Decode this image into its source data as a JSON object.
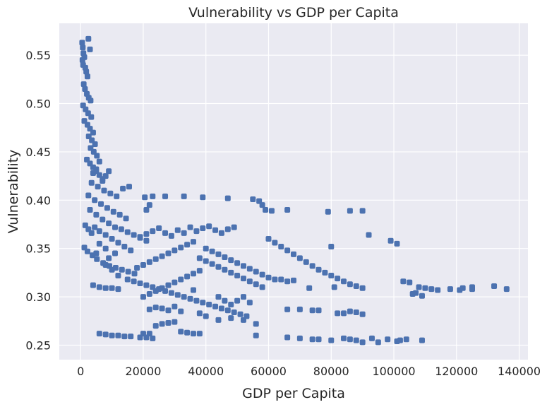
{
  "chart_data": {
    "type": "scatter",
    "title": "Vulnerability vs GDP per Capita",
    "xlabel": "GDP per Capita",
    "ylabel": "Vulnerability",
    "xlim": [
      -6800,
      142800
    ],
    "ylim": [
      0.235,
      0.583
    ],
    "xticks": [
      0,
      20000,
      40000,
      60000,
      80000,
      100000,
      120000,
      140000
    ],
    "yticks": [
      0.25,
      0.3,
      0.35,
      0.4,
      0.45,
      0.5,
      0.55
    ],
    "grid": true,
    "legend": "none",
    "colors": {
      "background": "#eaeaf2",
      "grid": "#ffffff",
      "marker": "#4c72b0"
    },
    "series": [
      {
        "points": [
          [
            500,
            0.563
          ],
          [
            700,
            0.558
          ],
          [
            900,
            0.552
          ],
          [
            1200,
            0.548
          ],
          [
            600,
            0.545
          ],
          [
            800,
            0.54
          ],
          [
            1500,
            0.537
          ],
          [
            2500,
            0.567
          ],
          [
            3000,
            0.556
          ],
          [
            1800,
            0.533
          ],
          [
            2200,
            0.528
          ],
          [
            1000,
            0.52
          ],
          [
            1400,
            0.515
          ],
          [
            2000,
            0.51
          ],
          [
            2600,
            0.506
          ],
          [
            3200,
            0.503
          ],
          [
            800,
            0.498
          ],
          [
            1600,
            0.494
          ],
          [
            2400,
            0.49
          ],
          [
            3400,
            0.486
          ],
          [
            1200,
            0.482
          ],
          [
            2200,
            0.478
          ],
          [
            3000,
            0.474
          ],
          [
            4000,
            0.47
          ],
          [
            2600,
            0.466
          ],
          [
            3600,
            0.462
          ],
          [
            4600,
            0.458
          ],
          [
            3200,
            0.454
          ],
          [
            4200,
            0.45
          ],
          [
            5200,
            0.446
          ],
          [
            2000,
            0.442
          ],
          [
            3000,
            0.438
          ],
          [
            4000,
            0.434
          ],
          [
            5000,
            0.43
          ],
          [
            6000,
            0.426
          ],
          [
            7000,
            0.422
          ],
          [
            3500,
            0.418
          ],
          [
            5500,
            0.414
          ],
          [
            7500,
            0.41
          ],
          [
            9500,
            0.407
          ],
          [
            11500,
            0.404
          ],
          [
            13500,
            0.412
          ],
          [
            15500,
            0.414
          ],
          [
            2500,
            0.405
          ],
          [
            4500,
            0.4
          ],
          [
            6500,
            0.396
          ],
          [
            8500,
            0.392
          ],
          [
            10500,
            0.388
          ],
          [
            12500,
            0.385
          ],
          [
            14500,
            0.381
          ],
          [
            3000,
            0.39
          ],
          [
            5000,
            0.385
          ],
          [
            7000,
            0.38
          ],
          [
            9000,
            0.376
          ],
          [
            11000,
            0.372
          ],
          [
            13000,
            0.37
          ],
          [
            15000,
            0.367
          ],
          [
            17000,
            0.364
          ],
          [
            19000,
            0.361
          ],
          [
            21000,
            0.358
          ],
          [
            1500,
            0.374
          ],
          [
            2500,
            0.37
          ],
          [
            3500,
            0.366
          ],
          [
            4500,
            0.372
          ],
          [
            6000,
            0.368
          ],
          [
            8000,
            0.364
          ],
          [
            10000,
            0.36
          ],
          [
            12000,
            0.356
          ],
          [
            14000,
            0.352
          ],
          [
            16000,
            0.348
          ],
          [
            1200,
            0.351
          ],
          [
            2200,
            0.347
          ],
          [
            3800,
            0.343
          ],
          [
            5200,
            0.339
          ],
          [
            7200,
            0.335
          ],
          [
            9200,
            0.332
          ],
          [
            11200,
            0.33
          ],
          [
            13200,
            0.328
          ],
          [
            15200,
            0.326
          ],
          [
            17200,
            0.324
          ],
          [
            4000,
            0.312
          ],
          [
            6000,
            0.31
          ],
          [
            8000,
            0.309
          ],
          [
            10000,
            0.309
          ],
          [
            12000,
            0.308
          ],
          [
            6000,
            0.262
          ],
          [
            8000,
            0.261
          ],
          [
            10000,
            0.26
          ],
          [
            12000,
            0.26
          ],
          [
            14000,
            0.259
          ],
          [
            16000,
            0.259
          ],
          [
            19000,
            0.258
          ],
          [
            21000,
            0.258
          ],
          [
            23000,
            0.257
          ],
          [
            20000,
            0.262
          ],
          [
            22000,
            0.262
          ],
          [
            24000,
            0.27
          ],
          [
            26000,
            0.272
          ],
          [
            28000,
            0.273
          ],
          [
            30000,
            0.274
          ],
          [
            32000,
            0.264
          ],
          [
            34000,
            0.263
          ],
          [
            36000,
            0.262
          ],
          [
            38000,
            0.262
          ],
          [
            22000,
            0.287
          ],
          [
            24000,
            0.289
          ],
          [
            26000,
            0.288
          ],
          [
            28000,
            0.286
          ],
          [
            30000,
            0.29
          ],
          [
            32000,
            0.285
          ],
          [
            20000,
            0.3
          ],
          [
            22000,
            0.303
          ],
          [
            24000,
            0.306
          ],
          [
            26000,
            0.309
          ],
          [
            28000,
            0.312
          ],
          [
            30000,
            0.315
          ],
          [
            32000,
            0.318
          ],
          [
            34000,
            0.321
          ],
          [
            36000,
            0.324
          ],
          [
            38000,
            0.327
          ],
          [
            18000,
            0.33
          ],
          [
            20000,
            0.333
          ],
          [
            22000,
            0.336
          ],
          [
            24000,
            0.339
          ],
          [
            26000,
            0.342
          ],
          [
            28000,
            0.345
          ],
          [
            30000,
            0.348
          ],
          [
            32000,
            0.351
          ],
          [
            34000,
            0.354
          ],
          [
            36000,
            0.357
          ],
          [
            19000,
            0.362
          ],
          [
            21000,
            0.365
          ],
          [
            23000,
            0.368
          ],
          [
            25000,
            0.371
          ],
          [
            27000,
            0.366
          ],
          [
            29000,
            0.363
          ],
          [
            31000,
            0.369
          ],
          [
            33000,
            0.366
          ],
          [
            35000,
            0.372
          ],
          [
            37000,
            0.368
          ],
          [
            39000,
            0.371
          ],
          [
            41000,
            0.373
          ],
          [
            43000,
            0.369
          ],
          [
            45000,
            0.366
          ],
          [
            47000,
            0.37
          ],
          [
            49000,
            0.372
          ],
          [
            20500,
            0.403
          ],
          [
            23000,
            0.404
          ],
          [
            27000,
            0.404
          ],
          [
            33000,
            0.404
          ],
          [
            39000,
            0.403
          ],
          [
            47000,
            0.402
          ],
          [
            22000,
            0.395
          ],
          [
            21000,
            0.39
          ],
          [
            15000,
            0.318
          ],
          [
            17000,
            0.316
          ],
          [
            19000,
            0.314
          ],
          [
            21000,
            0.312
          ],
          [
            23000,
            0.31
          ],
          [
            25000,
            0.308
          ],
          [
            27000,
            0.306
          ],
          [
            29000,
            0.304
          ],
          [
            31000,
            0.302
          ],
          [
            33000,
            0.3
          ],
          [
            35000,
            0.298
          ],
          [
            37000,
            0.296
          ],
          [
            39000,
            0.294
          ],
          [
            41000,
            0.292
          ],
          [
            43000,
            0.29
          ],
          [
            45000,
            0.288
          ],
          [
            47000,
            0.286
          ],
          [
            49000,
            0.284
          ],
          [
            51000,
            0.282
          ],
          [
            53000,
            0.28
          ],
          [
            38000,
            0.34
          ],
          [
            40000,
            0.337
          ],
          [
            42000,
            0.334
          ],
          [
            44000,
            0.331
          ],
          [
            46000,
            0.328
          ],
          [
            48000,
            0.325
          ],
          [
            50000,
            0.322
          ],
          [
            52000,
            0.319
          ],
          [
            54000,
            0.316
          ],
          [
            56000,
            0.313
          ],
          [
            58000,
            0.31
          ],
          [
            40000,
            0.35
          ],
          [
            42000,
            0.347
          ],
          [
            44000,
            0.344
          ],
          [
            46000,
            0.341
          ],
          [
            48000,
            0.338
          ],
          [
            50000,
            0.335
          ],
          [
            52000,
            0.332
          ],
          [
            54000,
            0.329
          ],
          [
            56000,
            0.326
          ],
          [
            58000,
            0.323
          ],
          [
            60000,
            0.32
          ],
          [
            62000,
            0.318
          ],
          [
            64000,
            0.318
          ],
          [
            66000,
            0.316
          ],
          [
            68000,
            0.317
          ],
          [
            55000,
            0.401
          ],
          [
            57000,
            0.399
          ],
          [
            58000,
            0.395
          ],
          [
            59000,
            0.39
          ],
          [
            61000,
            0.389
          ],
          [
            66000,
            0.39
          ],
          [
            79000,
            0.388
          ],
          [
            86000,
            0.389
          ],
          [
            90000,
            0.389
          ],
          [
            92000,
            0.364
          ],
          [
            99000,
            0.358
          ],
          [
            101000,
            0.355
          ],
          [
            80000,
            0.352
          ],
          [
            60000,
            0.36
          ],
          [
            62000,
            0.356
          ],
          [
            64000,
            0.352
          ],
          [
            66000,
            0.348
          ],
          [
            68000,
            0.344
          ],
          [
            70000,
            0.34
          ],
          [
            72000,
            0.336
          ],
          [
            74000,
            0.332
          ],
          [
            76000,
            0.328
          ],
          [
            78000,
            0.325
          ],
          [
            80000,
            0.322
          ],
          [
            82000,
            0.319
          ],
          [
            84000,
            0.316
          ],
          [
            86000,
            0.313
          ],
          [
            88000,
            0.311
          ],
          [
            90000,
            0.309
          ],
          [
            73000,
            0.309
          ],
          [
            81000,
            0.31
          ],
          [
            66000,
            0.287
          ],
          [
            70000,
            0.287
          ],
          [
            74000,
            0.286
          ],
          [
            76000,
            0.286
          ],
          [
            82000,
            0.283
          ],
          [
            84000,
            0.283
          ],
          [
            86000,
            0.285
          ],
          [
            88000,
            0.284
          ],
          [
            90000,
            0.282
          ],
          [
            56000,
            0.26
          ],
          [
            66000,
            0.258
          ],
          [
            70000,
            0.257
          ],
          [
            74000,
            0.256
          ],
          [
            76000,
            0.256
          ],
          [
            80000,
            0.255
          ],
          [
            84000,
            0.257
          ],
          [
            86000,
            0.256
          ],
          [
            88000,
            0.255
          ],
          [
            90000,
            0.253
          ],
          [
            93000,
            0.257
          ],
          [
            95000,
            0.253
          ],
          [
            98000,
            0.256
          ],
          [
            101000,
            0.254
          ],
          [
            102000,
            0.255
          ],
          [
            104000,
            0.256
          ],
          [
            109000,
            0.255
          ],
          [
            103000,
            0.316
          ],
          [
            105000,
            0.315
          ],
          [
            108000,
            0.31
          ],
          [
            110000,
            0.309
          ],
          [
            112000,
            0.308
          ],
          [
            114000,
            0.307
          ],
          [
            118000,
            0.308
          ],
          [
            121000,
            0.307
          ],
          [
            122000,
            0.309
          ],
          [
            125000,
            0.308
          ],
          [
            107000,
            0.304
          ],
          [
            106000,
            0.303
          ],
          [
            109000,
            0.301
          ],
          [
            132000,
            0.311
          ],
          [
            136000,
            0.308
          ],
          [
            125000,
            0.31
          ],
          [
            44000,
            0.3
          ],
          [
            46000,
            0.296
          ],
          [
            48000,
            0.292
          ],
          [
            50000,
            0.296
          ],
          [
            52000,
            0.3
          ],
          [
            54000,
            0.294
          ],
          [
            36000,
            0.307
          ],
          [
            38000,
            0.283
          ],
          [
            40000,
            0.28
          ],
          [
            44000,
            0.276
          ],
          [
            48000,
            0.278
          ],
          [
            52000,
            0.276
          ],
          [
            56000,
            0.272
          ],
          [
            8000,
            0.333
          ],
          [
            10000,
            0.328
          ],
          [
            12000,
            0.322
          ],
          [
            9000,
            0.34
          ],
          [
            11000,
            0.345
          ],
          [
            6000,
            0.355
          ],
          [
            8000,
            0.35
          ],
          [
            5000,
            0.345
          ],
          [
            7000,
            0.42
          ],
          [
            8000,
            0.425
          ],
          [
            9000,
            0.43
          ],
          [
            6000,
            0.44
          ],
          [
            5000,
            0.432
          ],
          [
            4000,
            0.428
          ]
        ]
      }
    ]
  }
}
